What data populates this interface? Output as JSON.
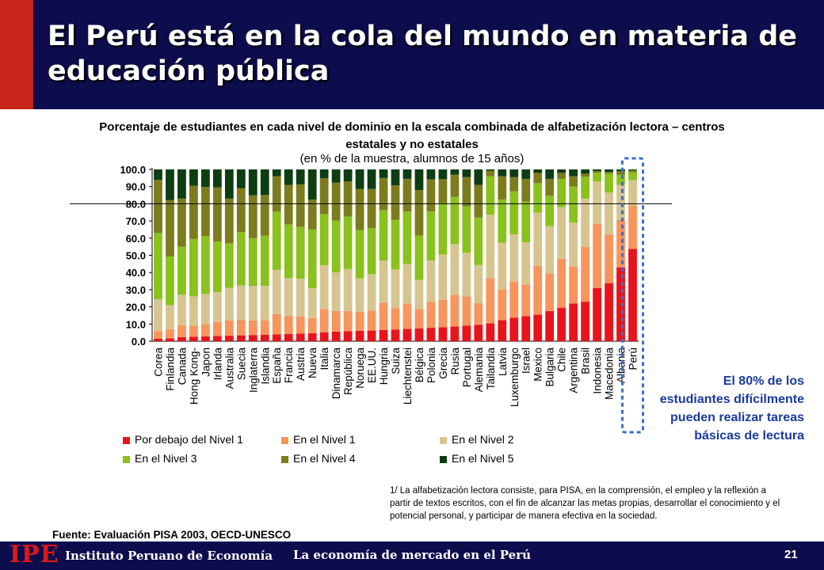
{
  "title": "El Perú está en la cola del mundo en materia de educación pública",
  "chart_data": {
    "type": "bar",
    "stacked": true,
    "title": "Porcentaje de estudiantes en cada nivel de dominio en la escala combinada de alfabetización lectora – centros estatales y no estatales",
    "subtitle": "(en % de la muestra, alumnos de 15 años)",
    "ylim": [
      0,
      100
    ],
    "yticks": [
      "100.0",
      "90.0",
      "80.0",
      "70.0",
      "60.0",
      "50.0",
      "40.0",
      "30.0",
      "20.0",
      "10.0",
      "0.0"
    ],
    "reference_line": 80,
    "categories": [
      "Corea",
      "Finlandia",
      "Canada",
      "Hong Kong-",
      "Japon",
      "Irlanda",
      "Australia",
      "Suecia",
      "Inglaterra",
      "Islandia",
      "España",
      "Francia",
      "Austria",
      "Nueva",
      "Italia",
      "Dinamarca",
      "República",
      "Noruega",
      "EE.UU.",
      "Hungria",
      "Suiza",
      "Liechtenstei",
      "Bélgica",
      "Polonia",
      "Grecia",
      "Rusia",
      "Portugal",
      "Alemania",
      "Tailandia",
      "Latvia",
      "Luxemburgo",
      "Israel",
      "Mexico",
      "Bulgaria",
      "Chile",
      "Argentina",
      "Brasil",
      "Indonesia",
      "Macedonia",
      "Albania",
      "Perú"
    ],
    "series": [
      {
        "name": "Por debajo del Nivel 1",
        "color": "#e8141c",
        "values": [
          1.4,
          1.7,
          2.4,
          2.6,
          2.8,
          3.1,
          3.2,
          3.4,
          3.6,
          3.8,
          4.0,
          4.2,
          4.4,
          4.7,
          5.2,
          5.6,
          5.8,
          6.0,
          6.2,
          6.5,
          6.8,
          7.2,
          7.5,
          7.8,
          8.1,
          8.5,
          9.0,
          9.6,
          10.4,
          12.2,
          13.7,
          14.5,
          15.4,
          17.5,
          19.5,
          22.0,
          23.0,
          31.0,
          33.8,
          43.0,
          53.8
        ]
      },
      {
        "name": "En el Nivel 1",
        "color": "#f7955c",
        "values": [
          4.5,
          5.3,
          6.8,
          6.5,
          7.2,
          8.0,
          8.8,
          9.0,
          8.5,
          8.4,
          11.8,
          10.5,
          10.0,
          8.8,
          13.5,
          11.9,
          11.7,
          11.2,
          11.6,
          16.0,
          12.5,
          14.8,
          11.2,
          15.0,
          16.0,
          18.5,
          17.0,
          12.6,
          26.3,
          18.0,
          21.0,
          18.5,
          28.5,
          22.0,
          28.5,
          21.5,
          32.0,
          37.5,
          28.2,
          27.5,
          25.0
        ]
      },
      {
        "name": "En el Nivel 2",
        "color": "#d6c590",
        "values": [
          18.6,
          14.0,
          17.8,
          17.0,
          17.5,
          17.5,
          19.0,
          20.0,
          20.0,
          20.0,
          25.7,
          22.0,
          22.0,
          17.3,
          25.5,
          22.5,
          24.5,
          19.3,
          21.2,
          24.5,
          22.5,
          23.0,
          17.0,
          24.2,
          26.4,
          29.5,
          25.5,
          22.2,
          37.0,
          27.2,
          27.4,
          24.5,
          31.0,
          27.5,
          30.0,
          25.5,
          28.0,
          24.5,
          24.5,
          20.5,
          15.0
        ]
      },
      {
        "name": "En el Nivel 3",
        "color": "#8ac11c",
        "values": [
          38.5,
          28.3,
          28.0,
          33.4,
          33.8,
          29.4,
          26.0,
          31.1,
          27.9,
          29.3,
          34.0,
          31.3,
          30.1,
          34.2,
          29.8,
          30.3,
          30.5,
          28.2,
          26.8,
          29.3,
          28.9,
          30.5,
          25.8,
          28.5,
          29.8,
          27.5,
          27.0,
          27.6,
          22.3,
          25.1,
          25.1,
          23.8,
          17.1,
          17.8,
          16.5,
          21.0,
          12.7,
          5.0,
          11.0,
          6.0,
          4.5
        ]
      },
      {
        "name": "En el Nivel 4",
        "color": "#7c7c1e",
        "values": [
          31.0,
          32.8,
          28.0,
          31.0,
          28.5,
          31.5,
          26.0,
          25.5,
          25.0,
          23.6,
          20.5,
          23.0,
          24.8,
          17.5,
          20.8,
          22.0,
          20.5,
          24.0,
          22.8,
          18.7,
          20.0,
          19.0,
          26.5,
          18.7,
          14.0,
          13.0,
          17.0,
          19.0,
          3.3,
          13.5,
          8.3,
          13.2,
          6.0,
          9.7,
          3.5,
          6.0,
          1.8,
          1.0,
          1.0,
          2.0,
          1.2
        ]
      },
      {
        "name": "En el Nivel 5",
        "color": "#0d3d12",
        "values": [
          6.0,
          17.9,
          17.0,
          9.5,
          10.2,
          10.5,
          17.0,
          11.0,
          15.0,
          14.9,
          4.0,
          9.0,
          8.7,
          17.5,
          5.2,
          7.7,
          7.0,
          11.3,
          11.4,
          5.0,
          9.3,
          5.5,
          12.0,
          5.8,
          5.7,
          3.0,
          4.5,
          9.0,
          0.7,
          4.0,
          4.5,
          5.5,
          2.0,
          5.5,
          2.0,
          4.0,
          2.5,
          1.0,
          1.5,
          1.0,
          0.5
        ]
      }
    ]
  },
  "note": "El 80% de los estudiantes difícilmente pueden realizar tareas básicas de lectura",
  "footnote": "1/ La alfabetización lectora consiste, para PISA, en la comprensión, el empleo y la reflexión a partir de textos escritos, con el fin de alcanzar las metas propias, desarrollar el conocimiento y el potencial personal, y participar de manera efectiva en la sociedad.",
  "source": "Fuente: Evaluación PISA 2003, OECD-UNESCO",
  "footer": {
    "logo": "IPE",
    "org": "Instituto Peruano de Economía",
    "slogan": "La economía de mercado en el Perú",
    "page": "21"
  },
  "colors": {
    "header_bg": "#0d0d4d",
    "header_accent": "#c8261a",
    "note_text": "#1a3a9c",
    "highlight_box": "#3a6fd0"
  }
}
